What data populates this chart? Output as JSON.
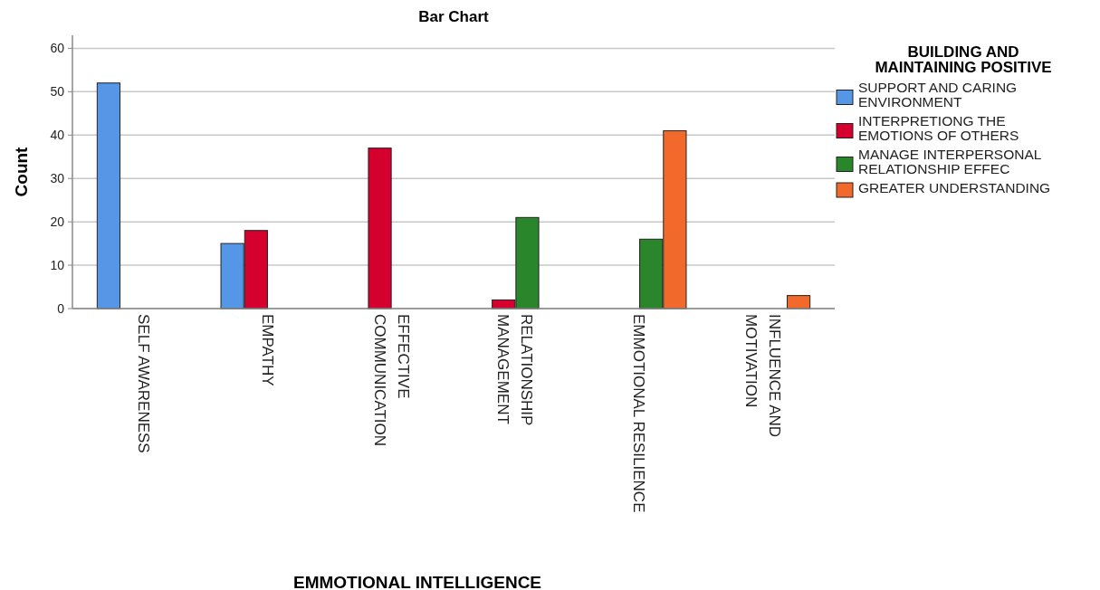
{
  "chart_data": {
    "type": "bar",
    "title": "Bar Chart",
    "xlabel": "EMMOTIONAL INTELLIGENCE",
    "ylabel": "Count",
    "legend_title": "BUILDING AND MAINTAINING POSITIVE",
    "categories": [
      "SELF AWARENESS",
      "EMPATHY",
      "EFFECTIVE COMMUNICATION",
      "RELATIONSHIP MANAGEMENT",
      "EMMOTIONAL RESILIENCE",
      "INFLUENCE AND MOTIVATION"
    ],
    "series": [
      {
        "name": "SUPPORT AND CARING ENVIRONMENT",
        "color": "#5596e6",
        "values": [
          52,
          15,
          null,
          null,
          null,
          null
        ]
      },
      {
        "name": "INTERPRETIONG THE EMOTIONS OF OTHERS",
        "color": "#d6002f",
        "values": [
          null,
          18,
          37,
          2,
          null,
          null
        ]
      },
      {
        "name": "MANAGE INTERPERSONAL RELATIONSHIP EFFEC",
        "color": "#2a862a",
        "values": [
          null,
          null,
          null,
          21,
          16,
          null
        ]
      },
      {
        "name": "GREATER UNDERSTANDING",
        "color": "#f26a2b",
        "values": [
          null,
          null,
          null,
          null,
          41,
          3
        ]
      }
    ],
    "ylim": [
      0,
      63
    ],
    "yticks": [
      0,
      10,
      20,
      30,
      40,
      50,
      60
    ],
    "grid": "y",
    "legend": "right"
  }
}
